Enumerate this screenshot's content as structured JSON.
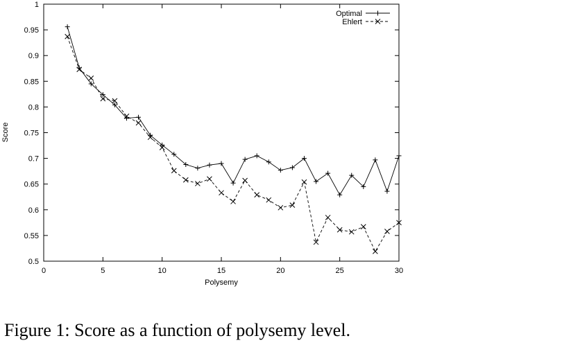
{
  "chart_data": {
    "type": "line",
    "title": "",
    "xlabel": "Polysemy",
    "ylabel": "Score",
    "xlim": [
      0,
      30
    ],
    "ylim": [
      0.5,
      1
    ],
    "xticks": [
      0,
      5,
      10,
      15,
      20,
      25,
      30
    ],
    "yticks": [
      0.5,
      0.55,
      0.6,
      0.65,
      0.7,
      0.75,
      0.8,
      0.85,
      0.9,
      0.95,
      1
    ],
    "x_tick_labels": [
      "0",
      "5",
      "10",
      "15",
      "20",
      "25",
      "30"
    ],
    "y_tick_labels": [
      "0.5",
      "0.55",
      "0.6",
      "0.65",
      "0.7",
      "0.75",
      "0.8",
      "0.85",
      "0.9",
      "0.95",
      "1"
    ],
    "grid": false,
    "legend_position": "top-right",
    "series": [
      {
        "name": "Optimal",
        "marker": "+",
        "line_style": "solid",
        "x": [
          2,
          3,
          4,
          5,
          6,
          7,
          8,
          9,
          10,
          11,
          12,
          13,
          14,
          15,
          16,
          17,
          18,
          19,
          20,
          21,
          22,
          23,
          24,
          25,
          26,
          27,
          28,
          29,
          30
        ],
        "y": [
          0.956,
          0.876,
          0.845,
          0.824,
          0.804,
          0.778,
          0.78,
          0.745,
          0.726,
          0.708,
          0.688,
          0.681,
          0.687,
          0.69,
          0.652,
          0.698,
          0.705,
          0.693,
          0.677,
          0.682,
          0.7,
          0.655,
          0.671,
          0.629,
          0.667,
          0.645,
          0.697,
          0.636,
          0.705
        ]
      },
      {
        "name": "Ehlert",
        "marker": "x",
        "line_style": "dashed",
        "x": [
          2,
          3,
          4,
          5,
          6,
          7,
          8,
          9,
          10,
          11,
          12,
          13,
          14,
          15,
          16,
          17,
          18,
          19,
          20,
          21,
          22,
          23,
          24,
          25,
          26,
          27,
          28,
          29,
          30
        ],
        "y": [
          0.937,
          0.873,
          0.856,
          0.816,
          0.812,
          0.782,
          0.769,
          0.741,
          0.721,
          0.676,
          0.658,
          0.651,
          0.66,
          0.633,
          0.616,
          0.657,
          0.629,
          0.619,
          0.604,
          0.609,
          0.654,
          0.537,
          0.585,
          0.561,
          0.557,
          0.567,
          0.519,
          0.558,
          0.575
        ]
      }
    ]
  },
  "caption": "Figure 1: Score as a function of polysemy level."
}
